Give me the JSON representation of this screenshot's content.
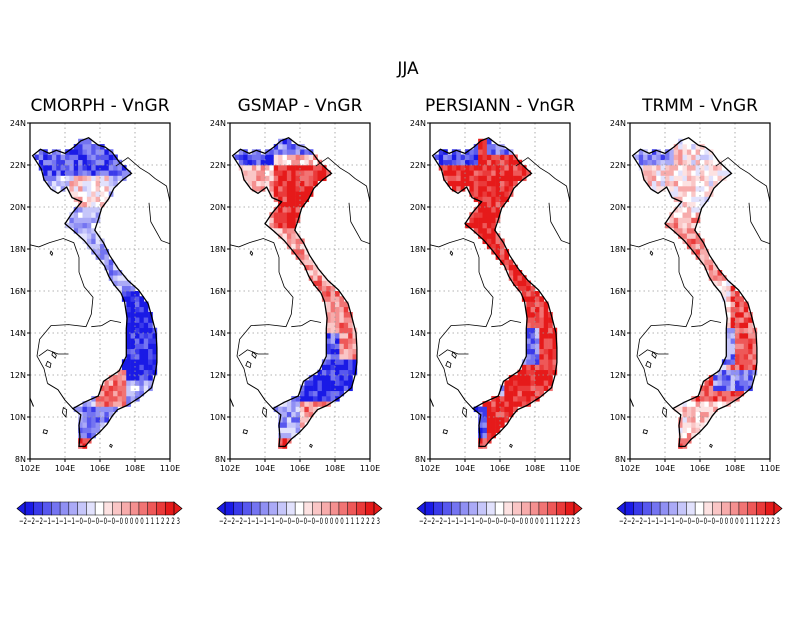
{
  "figure": {
    "title": "JJA",
    "panels": [
      {
        "name": "cmorph",
        "title": "CMORPH - VnGR"
      },
      {
        "name": "gsmap",
        "title": "GSMAP - VnGR"
      },
      {
        "name": "persiann",
        "title": "PERSIANN - VnGR"
      },
      {
        "name": "trmm",
        "title": "TRMM - VnGR"
      }
    ],
    "x_ticks": [
      "102E",
      "104E",
      "106E",
      "108E",
      "110E"
    ],
    "y_ticks": [
      "24N",
      "22N",
      "20N",
      "18N",
      "16N",
      "14N",
      "12N",
      "10N",
      "8N"
    ],
    "colorbar": {
      "colors": [
        "#1a1ae6",
        "#3a3aea",
        "#5858ee",
        "#7474f1",
        "#9090f4",
        "#abaaf7",
        "#c6c6fa",
        "#e2e2fd",
        "#ffffff",
        "#fde2e2",
        "#fac6c6",
        "#f7abab",
        "#f49090",
        "#f17474",
        "#ee5858",
        "#ea3a3a",
        "#e61a1a"
      ],
      "labels": "−2−2−2−1−1−1−1−0−0−0−0−0−0 0 0 0 0 1 1 1 2 2 2 3"
    }
  }
}
